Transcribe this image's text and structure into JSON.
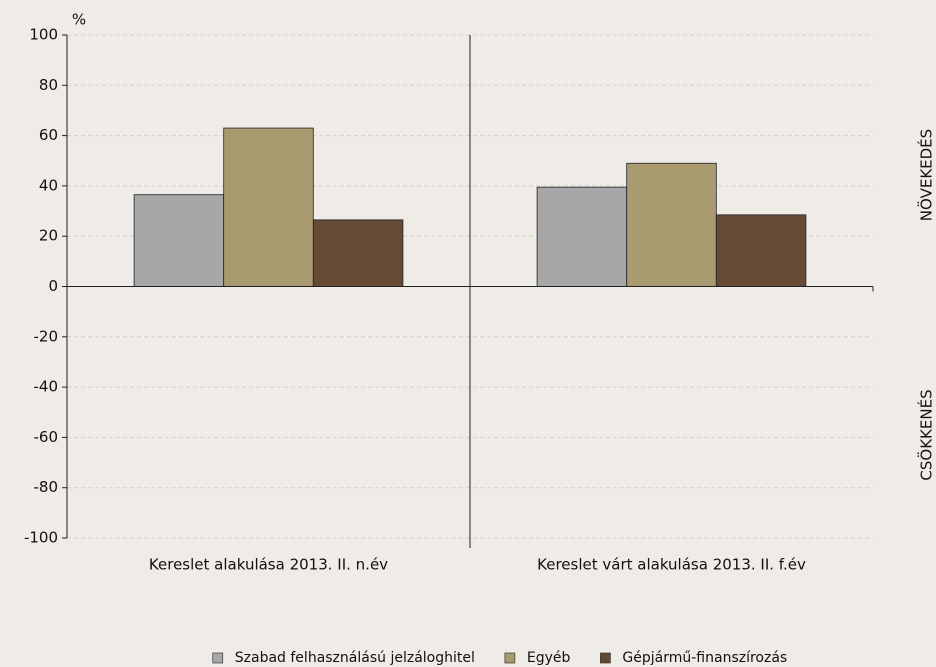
{
  "chart_data": {
    "type": "bar",
    "unit_label": "%",
    "annotations": [
      "NÖVEKEDÉS",
      "CSÖKKENÉS"
    ],
    "categories": [
      "Kereslet alakulása 2013. II. n.év",
      "Kereslet várt alakulása 2013. II. f.év"
    ],
    "series": [
      {
        "name": "Szabad felhasználású jelzáloghitel",
        "color": "#a7a7a7",
        "values": [
          36.5,
          39.5
        ]
      },
      {
        "name": "Egyéb",
        "color": "#a99b6f",
        "values": [
          63,
          49
        ]
      },
      {
        "name": "Gépjármű-finanszírozás",
        "color": "#654a35",
        "values": [
          26.5,
          28.5
        ]
      }
    ],
    "ylim": [
      -100,
      100
    ],
    "yticks": [
      -100,
      -80,
      -60,
      -40,
      -20,
      0,
      20,
      40,
      60,
      80,
      100
    ],
    "grid": true,
    "legend": "bottom"
  }
}
